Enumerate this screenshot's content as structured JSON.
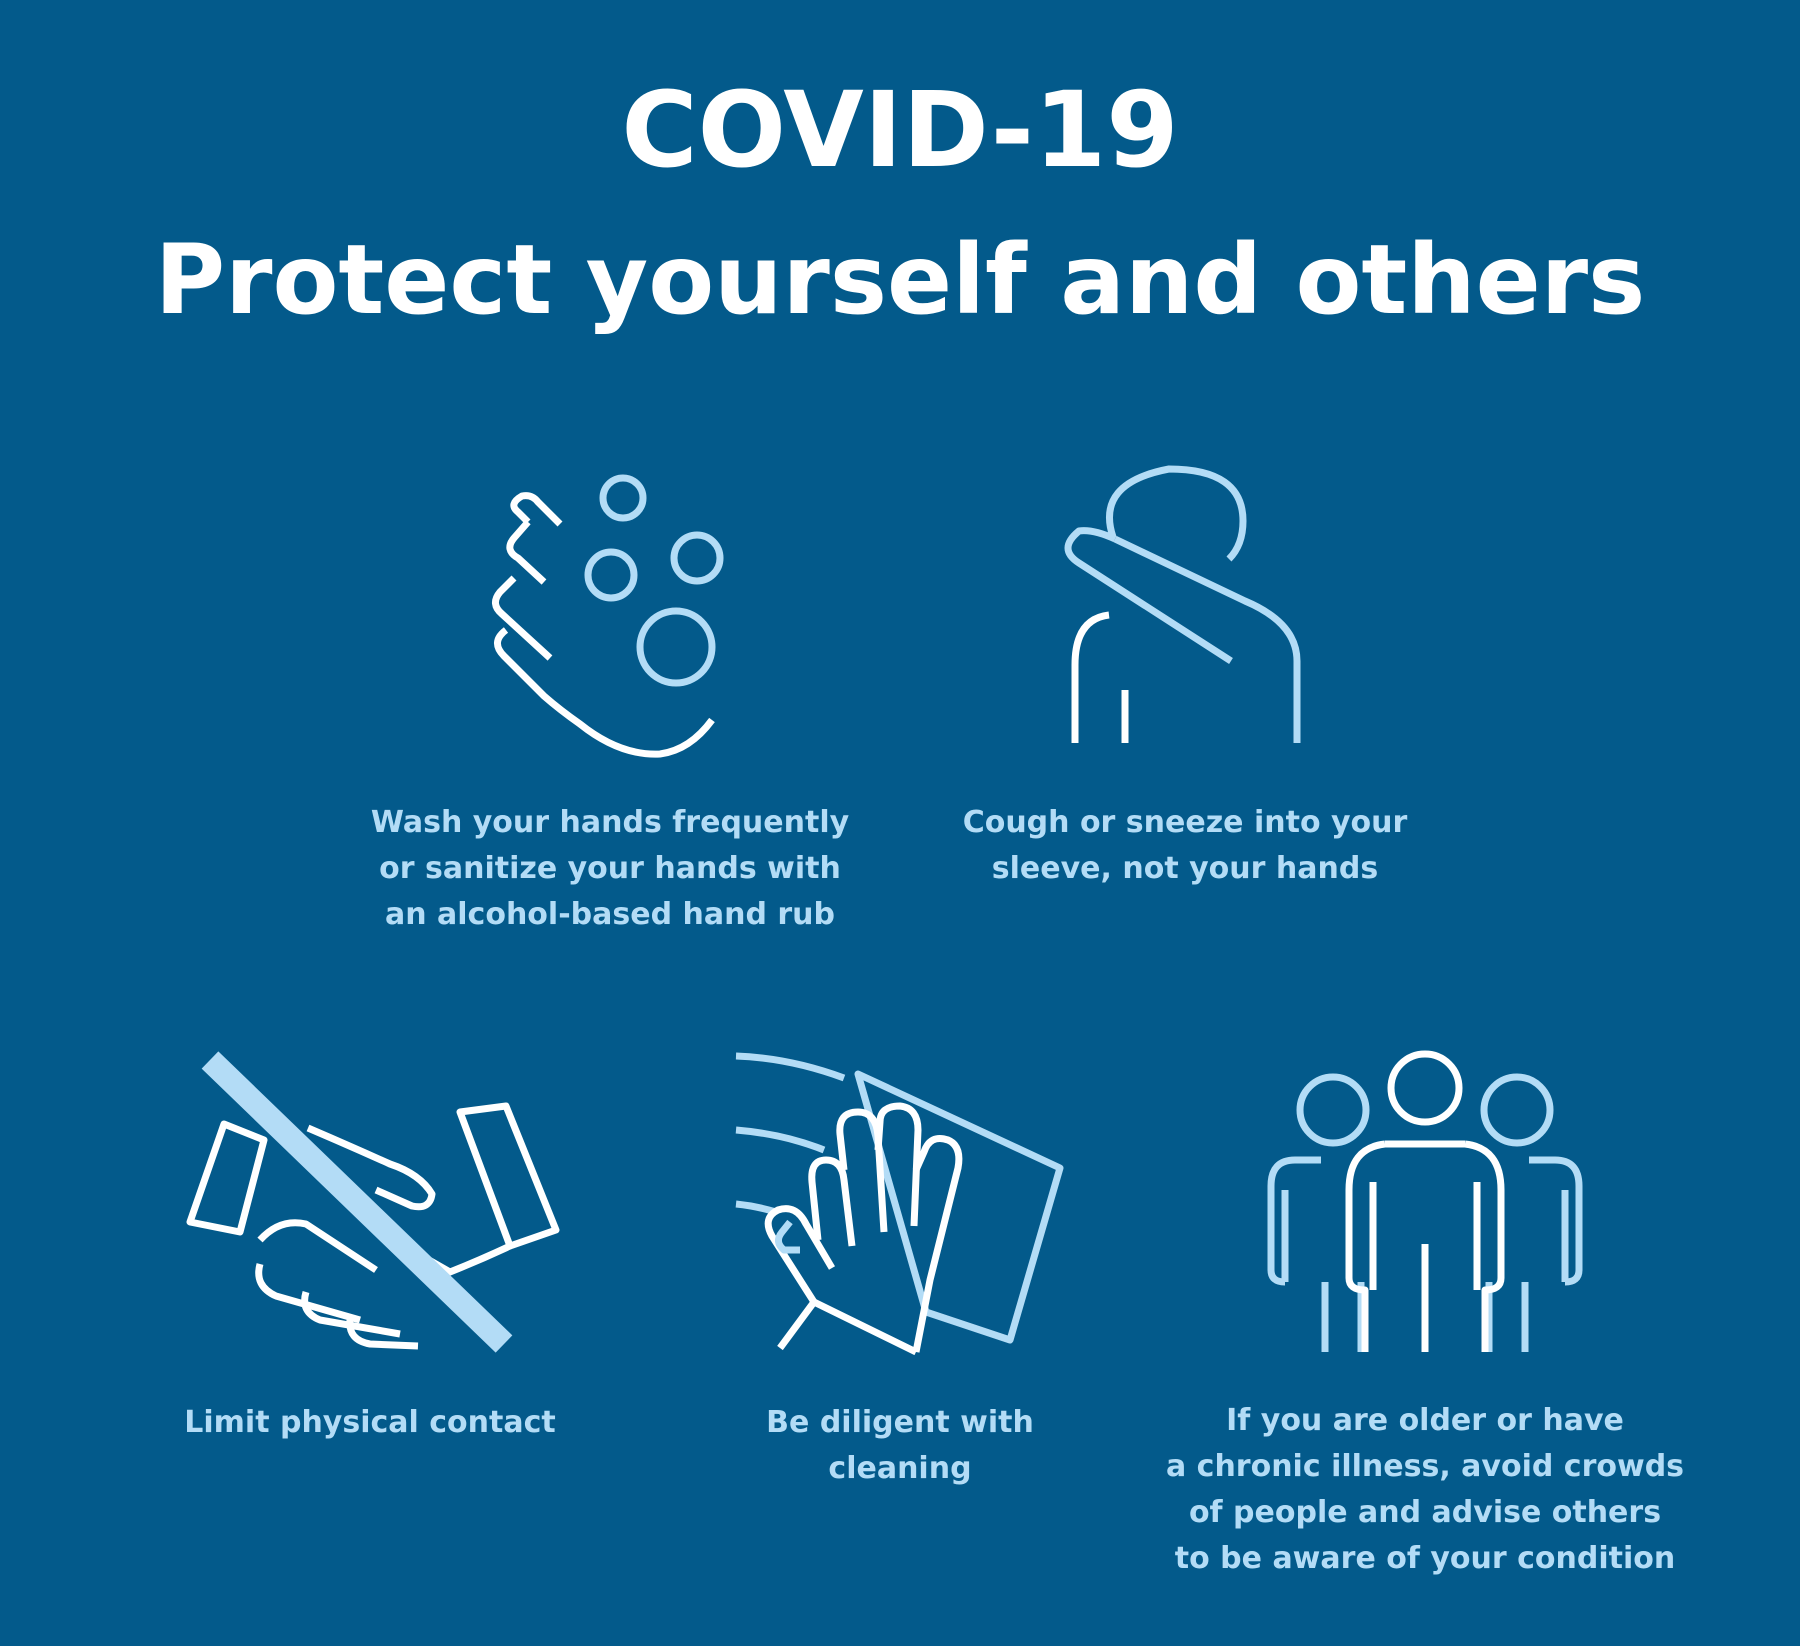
{
  "header": {
    "title_line1": "COVID-19",
    "title_line2": "Protect yourself and others"
  },
  "tips": [
    {
      "icon": "hand-washing-bubbles-icon",
      "caption": "Wash your hands frequently\nor sanitize your hands with\nan alcohol-based hand rub"
    },
    {
      "icon": "cough-into-elbow-icon",
      "caption": "Cough or sneeze into your\nsleeve, not your hands"
    },
    {
      "icon": "no-handshake-icon",
      "caption": "Limit physical contact"
    },
    {
      "icon": "cleaning-cloth-hand-icon",
      "caption": "Be diligent with cleaning"
    },
    {
      "icon": "group-of-people-icon",
      "caption": "If you are older or have\na chronic illness, avoid crowds\nof people and advise others\nto be aware of your condition"
    }
  ],
  "colors": {
    "background": "#035a8b",
    "title_text": "#ffffff",
    "caption_text": "#b3dcf6",
    "icon_primary": "#ffffff",
    "icon_accent": "#b3dcf6"
  }
}
